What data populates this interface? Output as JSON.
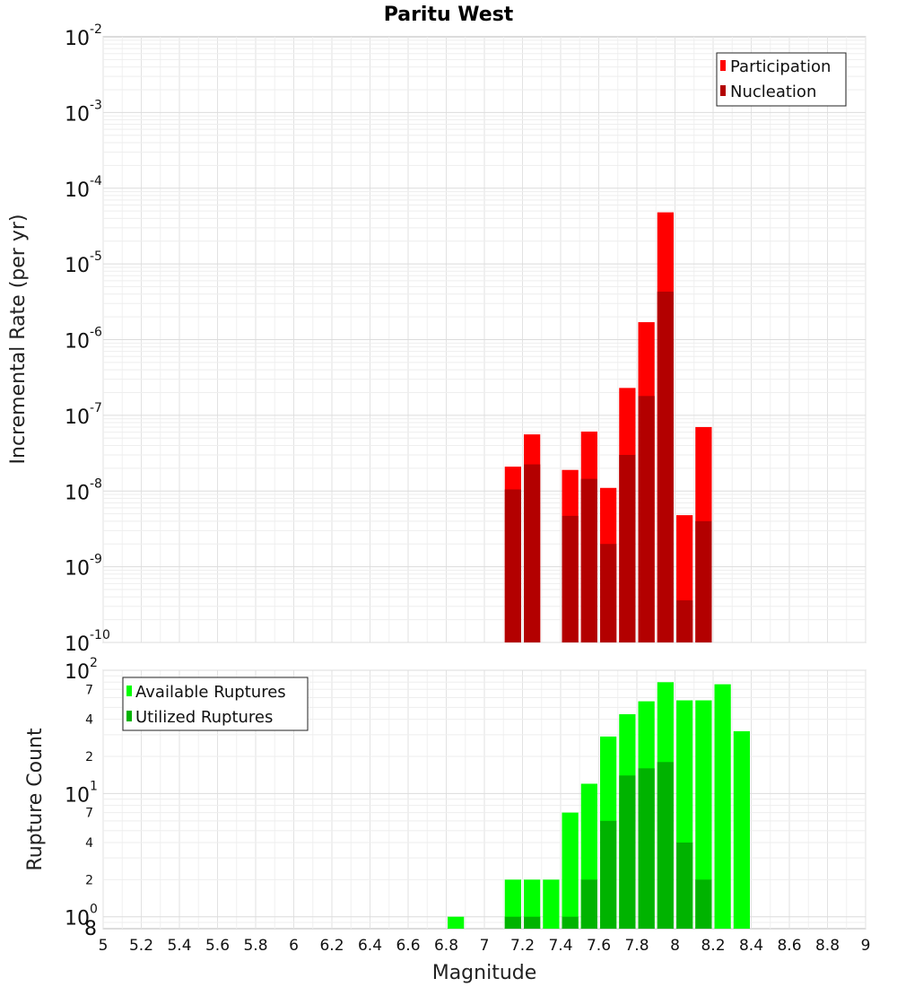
{
  "chart_data": [
    {
      "type": "bar",
      "title": "Paritu West",
      "xlabel": "",
      "ylabel": "Incremental Rate (per yr)",
      "yscale": "log",
      "ylim": [
        1e-10,
        0.01
      ],
      "xlim": [
        5,
        9
      ],
      "bar_width": 0.1,
      "grid": true,
      "legend_position": "top-right",
      "y_tick_labels": [
        {
          "base": "10",
          "exp": "-10"
        },
        {
          "base": "10",
          "exp": "-9"
        },
        {
          "base": "10",
          "exp": "-8"
        },
        {
          "base": "10",
          "exp": "-7"
        },
        {
          "base": "10",
          "exp": "-6"
        },
        {
          "base": "10",
          "exp": "-5"
        },
        {
          "base": "10",
          "exp": "-4"
        },
        {
          "base": "10",
          "exp": "-3"
        },
        {
          "base": "10",
          "exp": "-2"
        }
      ],
      "series": [
        {
          "name": "Participation",
          "color": "#ff0000",
          "x": [
            7.15,
            7.25,
            7.45,
            7.55,
            7.65,
            7.75,
            7.85,
            7.95,
            8.05,
            8.15
          ],
          "values": [
            2.1e-08,
            5.6e-08,
            1.9e-08,
            6.1e-08,
            1.1e-08,
            2.3e-07,
            1.7e-06,
            4.8e-05,
            4.8e-09,
            7e-08
          ]
        },
        {
          "name": "Nucleation",
          "color": "#b30000",
          "x": [
            7.15,
            7.25,
            7.45,
            7.55,
            7.65,
            7.75,
            7.85,
            7.95,
            8.05,
            8.15
          ],
          "values": [
            1.05e-08,
            2.25e-08,
            4.7e-09,
            1.45e-08,
            2e-09,
            3e-08,
            1.8e-07,
            4.3e-06,
            3.6e-10,
            4e-09
          ]
        }
      ]
    },
    {
      "type": "bar",
      "title": "",
      "xlabel": "Magnitude",
      "ylabel": "Rupture Count",
      "yscale": "log",
      "ylim": [
        0.8,
        100
      ],
      "xlim": [
        5,
        9
      ],
      "bar_width": 0.1,
      "grid": true,
      "legend_position": "top-left",
      "x_ticks": [
        "5",
        "5.2",
        "5.4",
        "5.6",
        "5.8",
        "6",
        "6.2",
        "6.4",
        "6.6",
        "6.8",
        "7",
        "7.2",
        "7.4",
        "7.6",
        "7.8",
        "8",
        "8.2",
        "8.4",
        "8.6",
        "8.8",
        "9"
      ],
      "y_tick_labels": [
        {
          "base": "10",
          "exp": "0"
        },
        {
          "base": "10",
          "exp": "1"
        },
        {
          "base": "10",
          "exp": "2"
        }
      ],
      "y_minor_labels": [
        "2",
        "4",
        "7",
        "2",
        "4",
        "7"
      ],
      "y_bottom_label": "8",
      "series": [
        {
          "name": "Available Ruptures",
          "color": "#00ff00",
          "x": [
            6.85,
            7.15,
            7.25,
            7.35,
            7.45,
            7.55,
            7.65,
            7.75,
            7.85,
            7.95,
            8.05,
            8.15,
            8.25,
            8.35
          ],
          "values": [
            1,
            2,
            2,
            2,
            7,
            12,
            29,
            44,
            56,
            80,
            57,
            57,
            77,
            32
          ]
        },
        {
          "name": "Utilized Ruptures",
          "color": "#00b300",
          "x": [
            7.15,
            7.25,
            7.45,
            7.55,
            7.65,
            7.75,
            7.85,
            7.95,
            8.05,
            8.15
          ],
          "values": [
            1,
            1,
            1,
            2,
            6,
            14,
            16,
            18,
            4,
            2
          ]
        }
      ]
    }
  ]
}
